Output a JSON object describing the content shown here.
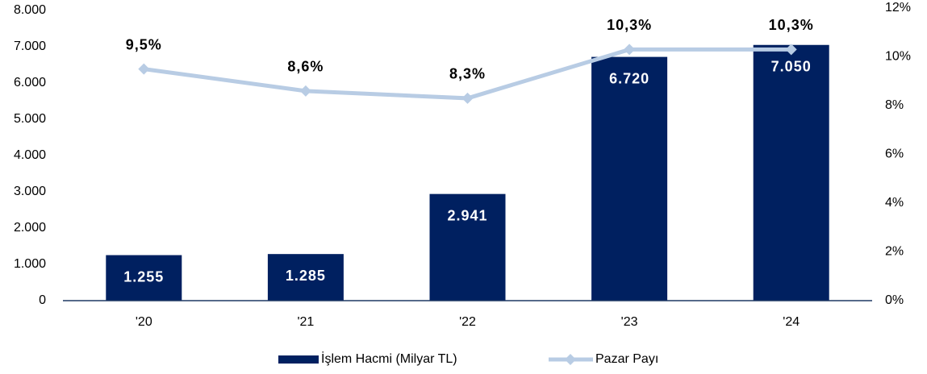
{
  "chart_data": {
    "type": "bar",
    "categories": [
      "'20",
      "'21",
      "'22",
      "'23",
      "'24"
    ],
    "series": [
      {
        "name": "İşlem Hacmi (Milyar TL)",
        "type": "bar",
        "color": "#002060",
        "values": [
          1255,
          1285,
          2941,
          6720,
          7050
        ],
        "value_labels": [
          "1.255",
          "1.285",
          "2.941",
          "6.720",
          "7.050"
        ]
      },
      {
        "name": "Pazar Payı",
        "type": "line",
        "axis": "y2",
        "color": "#b8cce4",
        "values": [
          9.5,
          8.6,
          8.3,
          10.3,
          10.3
        ],
        "value_labels": [
          "9,5%",
          "8,6%",
          "8,3%",
          "10,3%",
          "10,3%"
        ]
      }
    ],
    "ylim": [
      0,
      8000
    ],
    "yticks": [
      0,
      {
        "value": 1000,
        "label": "1.000"
      },
      {
        "value": 2000,
        "label": "2.000"
      },
      {
        "value": 3000,
        "label": "3.000"
      },
      {
        "value": 4000,
        "label": "4.000"
      },
      {
        "value": 5000,
        "label": "5.000"
      },
      {
        "value": 6000,
        "label": "6.000"
      },
      {
        "value": 7000,
        "label": "7.000"
      },
      {
        "value": 8000,
        "label": "8.000"
      }
    ],
    "y2lim": [
      0,
      12
    ],
    "y2ticks": [
      {
        "value": 0,
        "label": "0%"
      },
      {
        "value": 2,
        "label": "2%"
      },
      {
        "value": 4,
        "label": "4%"
      },
      {
        "value": 6,
        "label": "6%"
      },
      {
        "value": 8,
        "label": "8%"
      },
      {
        "value": 10,
        "label": "10%"
      },
      {
        "value": 12,
        "label": "12%"
      }
    ],
    "legend": "bottom"
  }
}
